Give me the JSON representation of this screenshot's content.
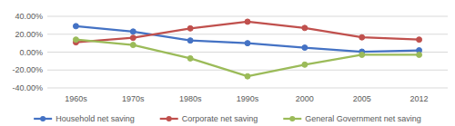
{
  "chart_data": {
    "type": "line",
    "categories": [
      "1960s",
      "1970s",
      "1980s",
      "1990s",
      "2000",
      "2005",
      "2012"
    ],
    "series": [
      {
        "name": "Household net saving",
        "color": "#4472c4",
        "marker": "circle",
        "values": [
          29,
          23,
          13,
          10,
          5,
          0.5,
          2
        ]
      },
      {
        "name": "Corporate net saving",
        "color": "#c0504d",
        "marker": "circle",
        "values": [
          11,
          16,
          26.5,
          34,
          27,
          16.5,
          14
        ]
      },
      {
        "name": "General Government net saving",
        "color": "#9bbb59",
        "marker": "circle",
        "values": [
          14,
          8,
          -7,
          -27,
          -14,
          -3,
          -3
        ]
      }
    ],
    "ylim": [
      -40,
      40
    ],
    "yticks": [
      {
        "value": -40,
        "label": "-40.00%"
      },
      {
        "value": -20,
        "label": "-20.00%"
      },
      {
        "value": 0,
        "label": "0.00%"
      },
      {
        "value": 20,
        "label": "20.00%"
      },
      {
        "value": 40,
        "label": "40.00%"
      }
    ],
    "grid": true,
    "legend": "bottom"
  }
}
